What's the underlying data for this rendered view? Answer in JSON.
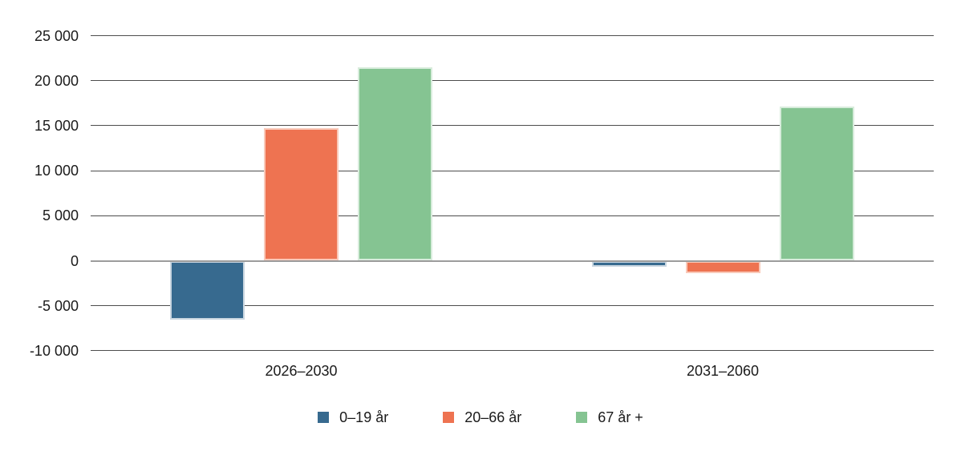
{
  "chart_data": {
    "type": "bar",
    "title": "",
    "categories": [
      "2026–2030",
      "2031–2060"
    ],
    "series": [
      {
        "name": "0–19 år",
        "color": "#376a8f",
        "border_color": "#c9d6e0",
        "values": [
          -6500,
          -700
        ]
      },
      {
        "name": "20–66 år",
        "color": "#ee7351",
        "border_color": "#f9c9b9",
        "values": [
          14700,
          -1350
        ]
      },
      {
        "name": "67 år +",
        "color": "#85c492",
        "border_color": "#d8ecdc",
        "values": [
          21500,
          17100
        ]
      }
    ],
    "y_axis": {
      "min": -10000,
      "max": 25000,
      "tick_step": 5000,
      "ticks": [
        {
          "value": 25000,
          "label": "25 000"
        },
        {
          "value": 20000,
          "label": "20 000"
        },
        {
          "value": 15000,
          "label": "15 000"
        },
        {
          "value": 10000,
          "label": "10 000"
        },
        {
          "value": 5000,
          "label": "5 000"
        },
        {
          "value": 0,
          "label": "0"
        },
        {
          "value": -5000,
          "label": "-5 000"
        },
        {
          "value": -10000,
          "label": "-10 000"
        }
      ]
    },
    "xlabel": "",
    "ylabel": "",
    "grid": "horizontal gridlines on",
    "legend_position": "bottom-center",
    "legend": [
      "0–19 år",
      "20–66 år",
      "67 år +"
    ]
  },
  "style": {
    "background": "#ffffff",
    "gridline_color": "#4d4d4d",
    "zero_line_color": "#9c9c9c",
    "text_color": "#1a1a1a"
  }
}
